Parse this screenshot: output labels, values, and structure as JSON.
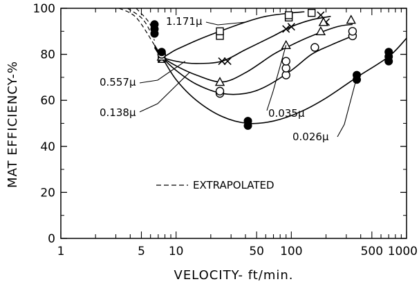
{
  "chart_data": {
    "type": "scatter",
    "xlabel": "VELOCITY- ft/min.",
    "ylabel": "MAT EFFICIENCY-%",
    "xscale": "log",
    "xlim": [
      1,
      1000
    ],
    "ylim": [
      0,
      100
    ],
    "x_ticks": [
      1,
      5,
      10,
      50,
      100,
      500,
      1000
    ],
    "x_tick_labels": [
      "1",
      "5",
      "10",
      "50",
      "100",
      "500",
      "1000"
    ],
    "y_ticks": [
      0,
      20,
      40,
      60,
      80,
      100
    ],
    "y_tick_labels": [
      "0",
      "20",
      "40",
      "60",
      "80",
      "100"
    ],
    "grid": false,
    "legend_text": "EXTRAPOLATED",
    "series": [
      {
        "name": "1.171μ",
        "marker": "square",
        "points": [
          [
            7.5,
            78
          ],
          [
            24,
            88
          ],
          [
            24,
            90
          ],
          [
            95,
            96
          ],
          [
            95,
            97
          ],
          [
            150,
            98
          ]
        ],
        "curve": [
          [
            6.5,
            84
          ],
          [
            7.5,
            79
          ],
          [
            10,
            82
          ],
          [
            15,
            86
          ],
          [
            24,
            90
          ],
          [
            40,
            94
          ],
          [
            60,
            96.5
          ],
          [
            100,
            98
          ],
          [
            130,
            98.5
          ]
        ]
      },
      {
        "name": "0.557μ",
        "marker": "x",
        "points": [
          [
            7.5,
            78
          ],
          [
            25,
            77
          ],
          [
            28,
            77
          ],
          [
            90,
            91
          ],
          [
            100,
            92
          ],
          [
            180,
            97
          ],
          [
            200,
            94
          ]
        ],
        "curve": [
          [
            6.5,
            83
          ],
          [
            7.5,
            79
          ],
          [
            10,
            77
          ],
          [
            15,
            76
          ],
          [
            25,
            77
          ],
          [
            40,
            82
          ],
          [
            70,
            88
          ],
          [
            100,
            92
          ],
          [
            150,
            95
          ],
          [
            220,
            96.5
          ]
        ]
      },
      {
        "name": "0.138μ",
        "marker": "triangle",
        "points": [
          [
            7.5,
            79
          ],
          [
            24,
            68
          ],
          [
            90,
            84
          ],
          [
            180,
            90
          ],
          [
            190,
            94
          ],
          [
            330,
            95
          ]
        ],
        "curve": [
          [
            6.5,
            83
          ],
          [
            7.5,
            79
          ],
          [
            10,
            75
          ],
          [
            15,
            71
          ],
          [
            25,
            68
          ],
          [
            40,
            72
          ],
          [
            70,
            80
          ],
          [
            100,
            84
          ],
          [
            150,
            88
          ],
          [
            250,
            92
          ],
          [
            340,
            93
          ]
        ]
      },
      {
        "name": "0.035μ",
        "marker": "circle-open",
        "points": [
          [
            7.5,
            80
          ],
          [
            24,
            63
          ],
          [
            24,
            64
          ],
          [
            90,
            71
          ],
          [
            90,
            74
          ],
          [
            90,
            77
          ],
          [
            160,
            83
          ],
          [
            340,
            88
          ],
          [
            340,
            90
          ]
        ],
        "curve": [
          [
            6.5,
            84
          ],
          [
            7.5,
            79
          ],
          [
            10,
            73
          ],
          [
            15,
            67
          ],
          [
            25,
            63
          ],
          [
            40,
            63
          ],
          [
            60,
            66
          ],
          [
            100,
            73
          ],
          [
            150,
            80
          ],
          [
            220,
            84
          ],
          [
            340,
            88
          ]
        ]
      },
      {
        "name": "0.026μ",
        "marker": "circle-filled",
        "points": [
          [
            6.5,
            89
          ],
          [
            6.5,
            91
          ],
          [
            6.5,
            93
          ],
          [
            7.5,
            81
          ],
          [
            42,
            49
          ],
          [
            42,
            51
          ],
          [
            370,
            69
          ],
          [
            370,
            71
          ],
          [
            700,
            77
          ],
          [
            700,
            79
          ],
          [
            700,
            81
          ]
        ],
        "curve": [
          [
            6.5,
            84
          ],
          [
            7.5,
            79
          ],
          [
            10,
            69
          ],
          [
            15,
            60
          ],
          [
            25,
            53
          ],
          [
            42,
            50
          ],
          [
            70,
            51
          ],
          [
            120,
            55
          ],
          [
            200,
            61
          ],
          [
            370,
            70
          ],
          [
            700,
            79
          ],
          [
            1000,
            87
          ]
        ]
      }
    ],
    "extrapolated": [
      [
        [
          3.2,
          100
        ],
        [
          4.5,
          96
        ],
        [
          6.5,
          84
        ]
      ],
      [
        [
          3.8,
          100
        ],
        [
          5.2,
          95
        ],
        [
          6.5,
          86
        ]
      ],
      [
        [
          4.5,
          100
        ],
        [
          5.8,
          94
        ],
        [
          6.5,
          88
        ]
      ]
    ]
  }
}
